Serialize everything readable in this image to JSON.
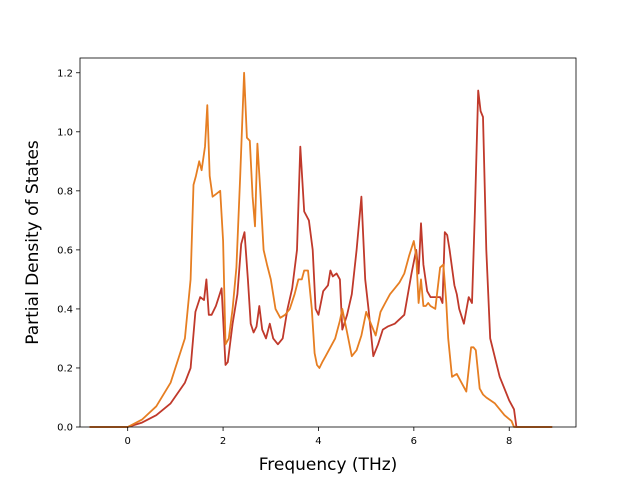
{
  "chart_data": {
    "type": "line",
    "title": "",
    "xlabel": "Frequency (THz)",
    "ylabel": "Partial Density of States",
    "xlim": [
      -1.0,
      9.4
    ],
    "ylim": [
      0.0,
      1.25
    ],
    "xticks": [
      0,
      2,
      4,
      6,
      8
    ],
    "yticks": [
      0.0,
      0.2,
      0.4,
      0.6,
      0.8,
      1.0,
      1.2
    ],
    "grid": false,
    "legend": "none",
    "series": [
      {
        "color": "#c0392b",
        "x": [
          -0.8,
          0.0,
          0.3,
          0.6,
          0.9,
          1.2,
          1.32,
          1.42,
          1.52,
          1.6,
          1.65,
          1.7,
          1.76,
          1.85,
          1.97,
          2.05,
          2.1,
          2.2,
          2.3,
          2.38,
          2.45,
          2.52,
          2.58,
          2.64,
          2.7,
          2.76,
          2.82,
          2.9,
          2.98,
          3.05,
          3.15,
          3.25,
          3.35,
          3.45,
          3.55,
          3.62,
          3.7,
          3.8,
          3.88,
          3.94,
          4.0,
          4.1,
          4.2,
          4.25,
          4.3,
          4.38,
          4.45,
          4.5,
          4.6,
          4.7,
          4.8,
          4.9,
          4.98,
          5.05,
          5.15,
          5.25,
          5.35,
          5.45,
          5.6,
          5.8,
          5.95,
          6.05,
          6.1,
          6.15,
          6.2,
          6.28,
          6.35,
          6.45,
          6.55,
          6.6,
          6.65,
          6.7,
          6.75,
          6.85,
          6.9,
          6.95,
          7.05,
          7.15,
          7.22,
          7.28,
          7.35,
          7.4,
          7.45,
          7.52,
          7.6,
          7.8,
          8.0,
          8.1,
          8.15,
          8.9
        ],
        "y": [
          0.0,
          0.0,
          0.015,
          0.04,
          0.08,
          0.15,
          0.2,
          0.39,
          0.44,
          0.43,
          0.5,
          0.38,
          0.38,
          0.41,
          0.47,
          0.21,
          0.22,
          0.35,
          0.45,
          0.62,
          0.66,
          0.5,
          0.35,
          0.32,
          0.34,
          0.41,
          0.33,
          0.3,
          0.35,
          0.3,
          0.28,
          0.3,
          0.4,
          0.47,
          0.6,
          0.95,
          0.73,
          0.7,
          0.6,
          0.4,
          0.38,
          0.46,
          0.48,
          0.53,
          0.51,
          0.52,
          0.5,
          0.33,
          0.38,
          0.45,
          0.6,
          0.78,
          0.5,
          0.4,
          0.24,
          0.28,
          0.33,
          0.34,
          0.35,
          0.38,
          0.52,
          0.6,
          0.52,
          0.69,
          0.55,
          0.46,
          0.44,
          0.44,
          0.44,
          0.42,
          0.66,
          0.65,
          0.6,
          0.48,
          0.45,
          0.4,
          0.35,
          0.44,
          0.42,
          0.73,
          1.14,
          1.07,
          1.05,
          0.6,
          0.3,
          0.17,
          0.09,
          0.06,
          0.0,
          0.0
        ]
      },
      {
        "color": "#e67e22",
        "x": [
          -0.8,
          0.0,
          0.3,
          0.6,
          0.9,
          1.2,
          1.32,
          1.38,
          1.43,
          1.5,
          1.55,
          1.62,
          1.67,
          1.72,
          1.78,
          1.86,
          1.94,
          2.0,
          2.05,
          2.12,
          2.2,
          2.28,
          2.36,
          2.44,
          2.5,
          2.56,
          2.62,
          2.67,
          2.72,
          2.78,
          2.85,
          2.92,
          3.0,
          3.1,
          3.2,
          3.3,
          3.4,
          3.5,
          3.58,
          3.65,
          3.7,
          3.78,
          3.86,
          3.92,
          3.97,
          4.02,
          4.08,
          4.15,
          4.25,
          4.35,
          4.45,
          4.5,
          4.6,
          4.7,
          4.8,
          4.9,
          5.0,
          5.1,
          5.2,
          5.3,
          5.4,
          5.5,
          5.6,
          5.7,
          5.8,
          5.9,
          6.0,
          6.05,
          6.1,
          6.15,
          6.2,
          6.25,
          6.3,
          6.35,
          6.45,
          6.55,
          6.62,
          6.68,
          6.72,
          6.8,
          6.9,
          7.0,
          7.1,
          7.2,
          7.25,
          7.3,
          7.38,
          7.45,
          7.52,
          7.7,
          7.9,
          8.05,
          8.1,
          8.9
        ],
        "y": [
          0.0,
          0.0,
          0.025,
          0.07,
          0.15,
          0.3,
          0.5,
          0.82,
          0.85,
          0.9,
          0.87,
          0.95,
          1.09,
          0.85,
          0.78,
          0.79,
          0.8,
          0.63,
          0.28,
          0.3,
          0.4,
          0.54,
          0.85,
          1.2,
          0.98,
          0.97,
          0.78,
          0.68,
          0.96,
          0.8,
          0.6,
          0.55,
          0.5,
          0.4,
          0.37,
          0.38,
          0.4,
          0.45,
          0.5,
          0.5,
          0.53,
          0.53,
          0.4,
          0.25,
          0.21,
          0.2,
          0.22,
          0.24,
          0.27,
          0.3,
          0.36,
          0.4,
          0.32,
          0.24,
          0.26,
          0.31,
          0.39,
          0.35,
          0.31,
          0.39,
          0.42,
          0.45,
          0.47,
          0.49,
          0.52,
          0.58,
          0.63,
          0.58,
          0.42,
          0.5,
          0.41,
          0.41,
          0.42,
          0.41,
          0.4,
          0.54,
          0.55,
          0.42,
          0.3,
          0.17,
          0.18,
          0.15,
          0.12,
          0.27,
          0.27,
          0.26,
          0.13,
          0.11,
          0.1,
          0.08,
          0.04,
          0.02,
          0.0,
          0.0
        ]
      }
    ]
  }
}
